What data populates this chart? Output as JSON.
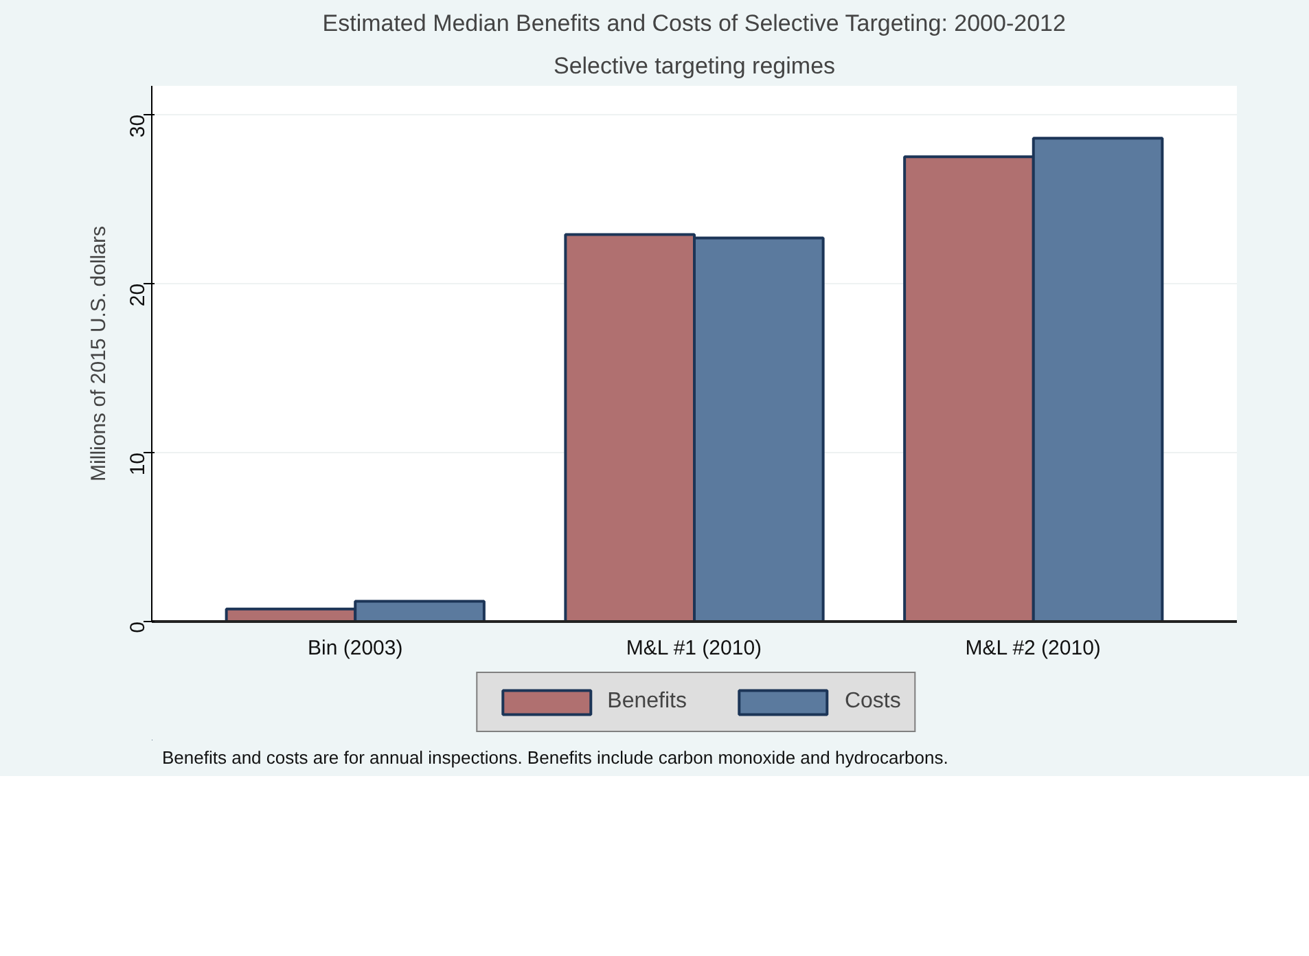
{
  "chart_data": {
    "type": "bar",
    "title": "Estimated Median Benefits and Costs of Selective Targeting: 2000-2012",
    "subtitle": "Selective targeting regimes",
    "ylabel": "Millions of 2015 U.S. dollars",
    "categories": [
      "Bin (2003)",
      "M&L #1 (2010)",
      "M&L #2 (2010)"
    ],
    "series": [
      {
        "name": "Benefits",
        "color": "#b07070",
        "values": [
          0.74,
          22.9,
          27.5
        ]
      },
      {
        "name": "Costs",
        "color": "#5b7a9e",
        "values": [
          1.2,
          22.7,
          28.6
        ]
      }
    ],
    "ylim": [
      0,
      31.7
    ],
    "yticks": [
      0,
      10,
      20,
      30
    ],
    "grid": "y",
    "legend": "bottom",
    "annotations": [
      "Benefits and costs are for annual inspections. Benefits include carbon monoxide and hydrocarbons."
    ]
  }
}
